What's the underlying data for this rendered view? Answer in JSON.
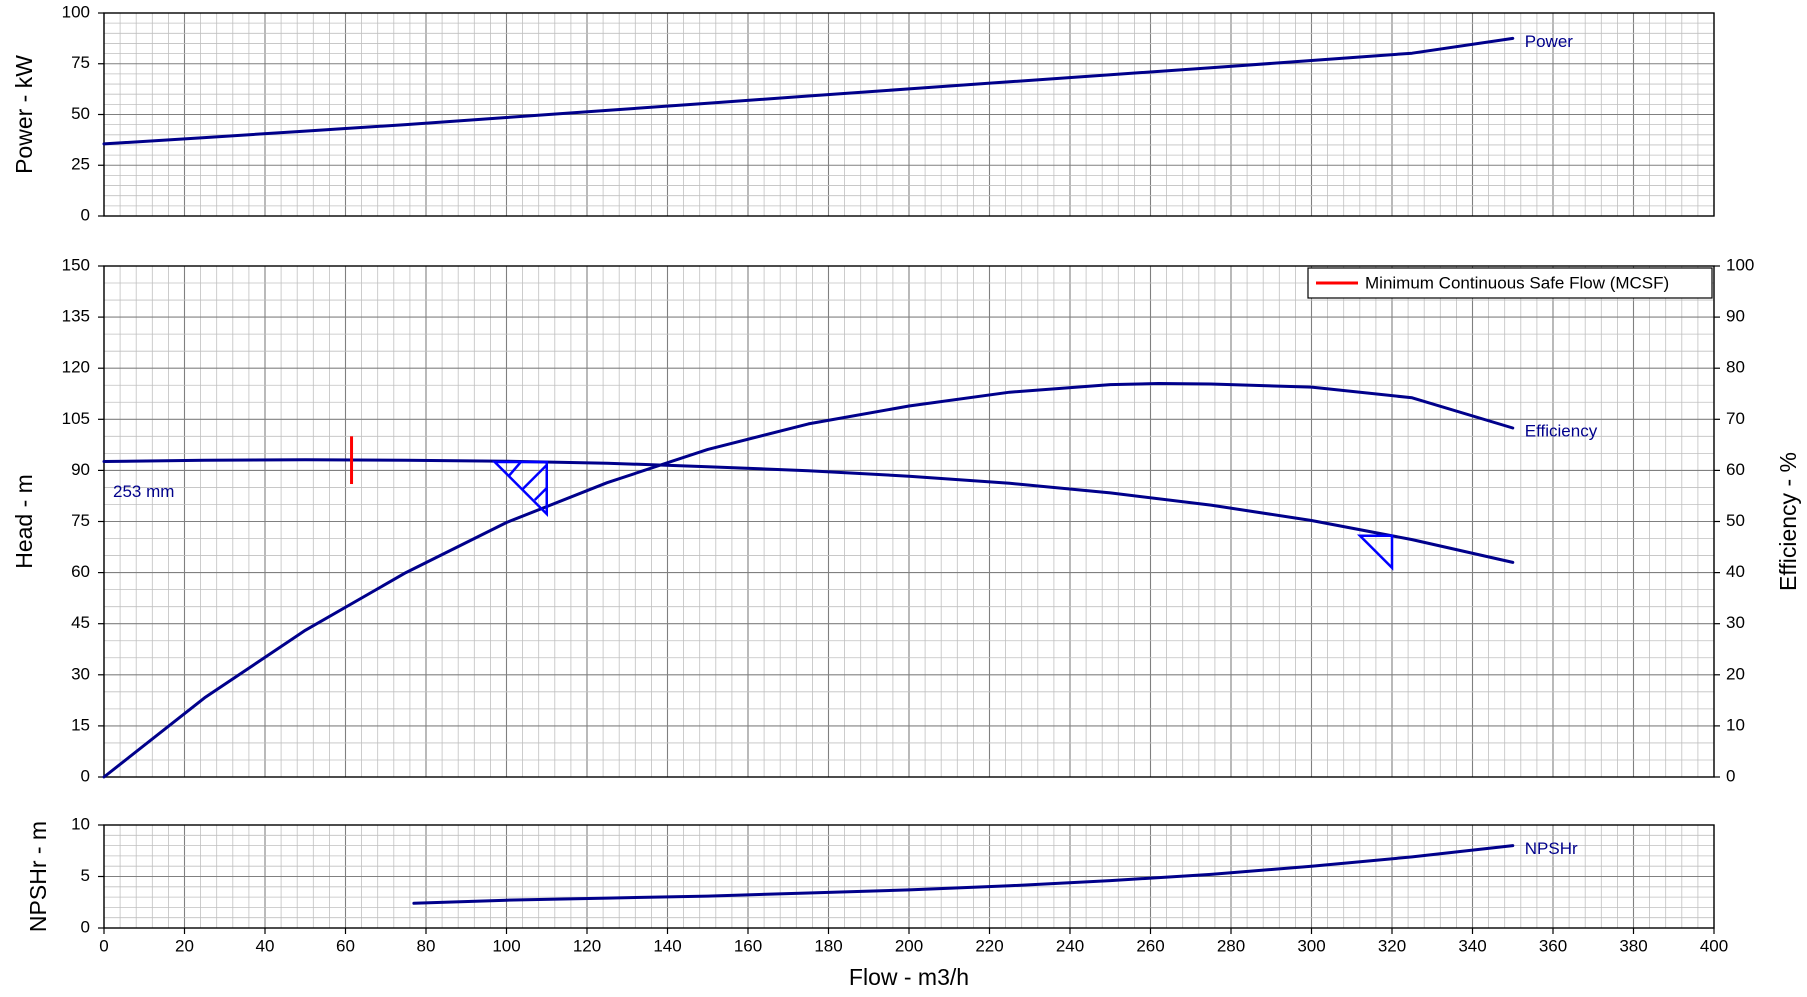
{
  "colors": {
    "curve": "#00008b",
    "marker": "#0000ff",
    "mcsf": "#ff0000",
    "grid_major": "#808080",
    "grid_minor": "#c0c0c0",
    "frame": "#000000"
  },
  "chart_data": [
    {
      "type": "line",
      "name_key": "power",
      "ylabel": "Power - kW",
      "xlim": [
        0,
        400
      ],
      "ylim": [
        0,
        100
      ],
      "yticks": [
        0,
        25,
        50,
        75,
        100
      ],
      "grid": true,
      "series": [
        {
          "name": "Power",
          "x": [
            0,
            25,
            50,
            75,
            100,
            125,
            150,
            175,
            200,
            225,
            250,
            275,
            300,
            325,
            350
          ],
          "y": [
            35.5,
            38.6,
            41.8,
            45,
            48.5,
            52,
            55.5,
            59.1,
            62.6,
            66.1,
            69.6,
            73,
            76.6,
            80.2,
            87.5
          ]
        }
      ]
    },
    {
      "type": "line",
      "name_key": "head",
      "ylabel": "Head - m",
      "y2label": "Efficiency - %",
      "xlim": [
        0,
        400
      ],
      "ylim": [
        0,
        150
      ],
      "y2lim": [
        0,
        100
      ],
      "yticks": [
        0,
        15,
        30,
        45,
        60,
        75,
        90,
        105,
        120,
        135,
        150
      ],
      "y2ticks": [
        0,
        10,
        20,
        30,
        40,
        50,
        60,
        70,
        80,
        90,
        100
      ],
      "grid": true,
      "legend": {
        "position": "top-right",
        "entries": [
          "Minimum Continuous Safe Flow (MCSF)"
        ]
      },
      "annotations": {
        "impeller": "253 mm"
      },
      "mcsf": {
        "x": 61.5,
        "y_range": [
          86,
          100
        ]
      },
      "series": [
        {
          "name": "Head",
          "axis": "left",
          "x": [
            0,
            25,
            50,
            75,
            100,
            125,
            150,
            175,
            200,
            225,
            250,
            275,
            300,
            325,
            350
          ],
          "y": [
            92.6,
            93,
            93.1,
            93,
            92.7,
            92.1,
            91.1,
            89.9,
            88.3,
            86.2,
            83.4,
            79.8,
            75.3,
            69.7,
            63
          ]
        },
        {
          "name": "Efficiency",
          "axis": "right",
          "x": [
            0,
            25,
            50,
            75,
            100,
            125,
            150,
            175,
            200,
            225,
            250,
            262,
            275,
            300,
            325,
            350
          ],
          "y": [
            0,
            15.5,
            28.7,
            40,
            49.8,
            57.6,
            64.1,
            69.1,
            72.6,
            75.3,
            76.8,
            77,
            76.9,
            76.3,
            74.2,
            68.3
          ]
        }
      ]
    },
    {
      "type": "line",
      "name_key": "npshr",
      "ylabel": "NPSHr - m",
      "xlabel": "Flow - m3/h",
      "xlim": [
        0,
        400
      ],
      "ylim": [
        0,
        10
      ],
      "yticks": [
        0,
        5,
        10
      ],
      "xticks": [
        0,
        20,
        40,
        60,
        80,
        100,
        120,
        140,
        160,
        180,
        200,
        220,
        240,
        260,
        280,
        300,
        320,
        340,
        360,
        380,
        400
      ],
      "grid": true,
      "series": [
        {
          "name": "NPSHr",
          "x": [
            77,
            100,
            125,
            150,
            175,
            200,
            225,
            250,
            275,
            300,
            325,
            350
          ],
          "y": [
            2.4,
            2.7,
            2.9,
            3.1,
            3.4,
            3.7,
            4.1,
            4.6,
            5.2,
            6,
            6.9,
            8
          ]
        }
      ]
    }
  ]
}
